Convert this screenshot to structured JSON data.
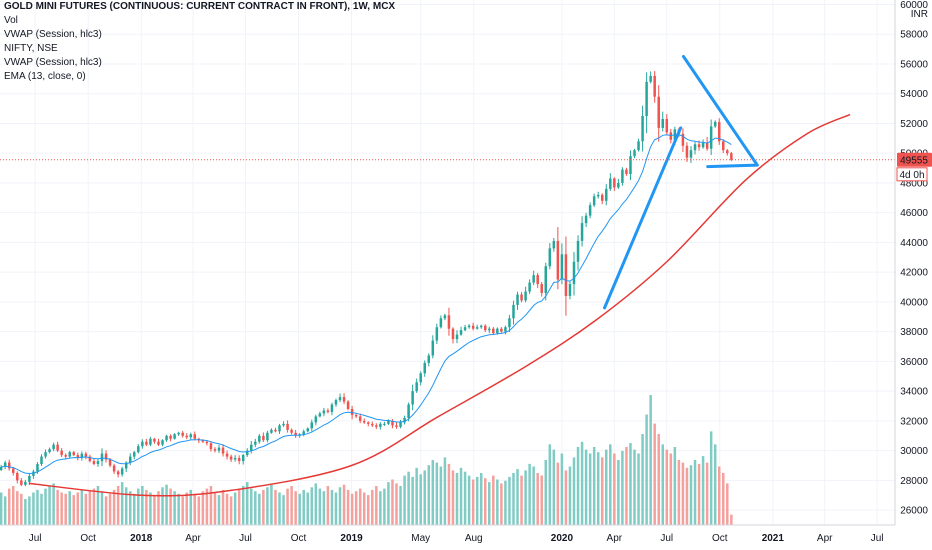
{
  "legend": {
    "title": "GOLD MINI FUTURES (CONTINUOUS: CURRENT CONTRACT IN FRONT), 1W, MCX",
    "items": [
      "Vol",
      "VWAP (Session, hlc3)",
      "NIFTY, NSE",
      "VWAP (Session, hlc3)",
      "EMA (13, close, 0)"
    ]
  },
  "axis": {
    "currency": "INR",
    "price_label": "49555",
    "countdown_label": "4d 0h"
  },
  "colors": {
    "up": "#26a69a",
    "down": "#ef5350",
    "vol_up": "#80cbc4",
    "vol_down": "#f4a09c",
    "ema": "#2196f3",
    "curve": "#e53935",
    "drawing": "#2196f3",
    "price_tag": "#ef5350"
  },
  "chart_data": {
    "type": "candlestick",
    "yaxis": {
      "ticks": [
        "26000",
        "28000",
        "30000",
        "32000",
        "34000",
        "36000",
        "38000",
        "40000",
        "42000",
        "44000",
        "46000",
        "48000",
        "50000",
        "52000",
        "54000",
        "56000",
        "58000",
        "60000"
      ],
      "ylim": [
        25000,
        60300
      ]
    },
    "xaxis": {
      "ticks": [
        {
          "label": "Jul",
          "date": "2017-07-01",
          "bold": false
        },
        {
          "label": "Oct",
          "date": "2017-10-01",
          "bold": false
        },
        {
          "label": "2018",
          "date": "2018-01-01",
          "bold": true
        },
        {
          "label": "Apr",
          "date": "2018-04-01",
          "bold": false
        },
        {
          "label": "Jul",
          "date": "2018-07-01",
          "bold": false
        },
        {
          "label": "Oct",
          "date": "2018-10-01",
          "bold": false
        },
        {
          "label": "2019",
          "date": "2019-01-01",
          "bold": true
        },
        {
          "label": "May",
          "date": "2019-05-01",
          "bold": false
        },
        {
          "label": "Aug",
          "date": "2019-08-01",
          "bold": false
        },
        {
          "label": "2020",
          "date": "2020-01-01",
          "bold": true
        },
        {
          "label": "Apr",
          "date": "2020-04-01",
          "bold": false
        },
        {
          "label": "Jul",
          "date": "2020-07-01",
          "bold": false
        },
        {
          "label": "Oct",
          "date": "2020-10-01",
          "bold": false
        },
        {
          "label": "2021",
          "date": "2021-01-01",
          "bold": true
        },
        {
          "label": "Apr",
          "date": "2021-04-01",
          "bold": false
        },
        {
          "label": "Jul",
          "date": "2021-07-01",
          "bold": false
        }
      ],
      "start": "2017-05-01",
      "end": "2021-08-01"
    },
    "closes": [
      28900,
      29200,
      28800,
      28500,
      28000,
      27700,
      27900,
      28300,
      28600,
      29100,
      29600,
      29900,
      30100,
      30400,
      30000,
      29700,
      29600,
      29900,
      29700,
      29500,
      29800,
      29600,
      29300,
      29100,
      29300,
      29800,
      29400,
      29000,
      28600,
      28400,
      28800,
      29200,
      29600,
      29900,
      30300,
      30600,
      30400,
      30800,
      30600,
      30400,
      30700,
      31000,
      30800,
      31100,
      31200,
      31000,
      30900,
      31100,
      30800,
      30700,
      30600,
      30500,
      30100,
      30000,
      30200,
      29800,
      29600,
      29400,
      29500,
      29300,
      29700,
      30000,
      30400,
      30600,
      31000,
      30700,
      31200,
      31400,
      31300,
      31700,
      31800,
      31400,
      31200,
      31000,
      31100,
      31300,
      31500,
      31900,
      32300,
      32500,
      32700,
      32600,
      33100,
      33400,
      33600,
      33300,
      32800,
      32400,
      32300,
      32000,
      31900,
      31800,
      31700,
      31600,
      31800,
      31800,
      32000,
      31700,
      31600,
      31900,
      32200,
      33100,
      34000,
      34600,
      35200,
      35900,
      36400,
      37400,
      38300,
      38900,
      39100,
      38200,
      37500,
      37800,
      38100,
      38300,
      38400,
      38200,
      38300,
      38400,
      38100,
      38200,
      37900,
      38200,
      38000,
      38300,
      38900,
      39800,
      40500,
      40100,
      40700,
      41300,
      41800,
      41200,
      40600,
      42400,
      43600,
      44100,
      41500,
      43200,
      40400,
      41200,
      42700,
      44100,
      45300,
      45800,
      46500,
      47100,
      47200,
      46800,
      47600,
      48300,
      47700,
      48000,
      48900,
      48600,
      49800,
      50200,
      50800,
      52500,
      54800,
      55200,
      53800,
      51700,
      52300,
      51400,
      50900,
      51600,
      51300,
      50500,
      49700,
      50200,
      50600,
      50400,
      50700,
      50300,
      51800,
      52100,
      50800,
      50200,
      50000,
      49555
    ],
    "volume": [
      0.25,
      0.22,
      0.28,
      0.3,
      0.26,
      0.24,
      0.2,
      0.22,
      0.25,
      0.27,
      0.24,
      0.28,
      0.3,
      0.32,
      0.27,
      0.25,
      0.24,
      0.26,
      0.23,
      0.25,
      0.27,
      0.24,
      0.26,
      0.28,
      0.3,
      0.26,
      0.22,
      0.24,
      0.27,
      0.3,
      0.33,
      0.29,
      0.26,
      0.24,
      0.28,
      0.3,
      0.27,
      0.25,
      0.23,
      0.26,
      0.29,
      0.31,
      0.28,
      0.26,
      0.24,
      0.22,
      0.25,
      0.27,
      0.24,
      0.22,
      0.26,
      0.28,
      0.3,
      0.25,
      0.23,
      0.27,
      0.24,
      0.22,
      0.25,
      0.28,
      0.3,
      0.33,
      0.28,
      0.26,
      0.24,
      0.27,
      0.29,
      0.31,
      0.27,
      0.25,
      0.23,
      0.28,
      0.3,
      0.26,
      0.24,
      0.27,
      0.25,
      0.29,
      0.32,
      0.28,
      0.26,
      0.3,
      0.27,
      0.25,
      0.29,
      0.31,
      0.27,
      0.24,
      0.26,
      0.28,
      0.25,
      0.23,
      0.27,
      0.3,
      0.26,
      0.28,
      0.33,
      0.35,
      0.32,
      0.3,
      0.38,
      0.41,
      0.37,
      0.44,
      0.39,
      0.42,
      0.46,
      0.5,
      0.48,
      0.45,
      0.52,
      0.47,
      0.42,
      0.4,
      0.44,
      0.41,
      0.38,
      0.35,
      0.37,
      0.4,
      0.36,
      0.33,
      0.38,
      0.35,
      0.32,
      0.34,
      0.37,
      0.4,
      0.43,
      0.38,
      0.42,
      0.47,
      0.45,
      0.4,
      0.38,
      0.5,
      0.62,
      0.58,
      0.48,
      0.55,
      0.42,
      0.45,
      0.52,
      0.6,
      0.64,
      0.58,
      0.55,
      0.6,
      0.56,
      0.52,
      0.58,
      0.62,
      0.55,
      0.5,
      0.57,
      0.6,
      0.63,
      0.58,
      0.55,
      0.7,
      0.85,
      1.0,
      0.78,
      0.7,
      0.62,
      0.58,
      0.55,
      0.6,
      0.5,
      0.48,
      0.44,
      0.46,
      0.5,
      0.47,
      0.53,
      0.48,
      0.72,
      0.62,
      0.45,
      0.4,
      0.32,
      0.08
    ],
    "ema_note": "",
    "curve_points": [
      {
        "date": "2017-06-20",
        "y": 27800
      },
      {
        "date": "2018-01-01",
        "y": 27000
      },
      {
        "date": "2018-06-01",
        "y": 27300
      },
      {
        "date": "2019-01-01",
        "y": 29000
      },
      {
        "date": "2019-06-01",
        "y": 32300
      },
      {
        "date": "2019-11-01",
        "y": 35700
      },
      {
        "date": "2020-03-01",
        "y": 38800
      },
      {
        "date": "2020-07-01",
        "y": 42700
      },
      {
        "date": "2020-11-15",
        "y": 48200
      },
      {
        "date": "2021-03-01",
        "y": 51300
      },
      {
        "date": "2021-05-15",
        "y": 52600
      }
    ],
    "drawings": [
      {
        "name": "trend-line",
        "points": [
          {
            "date": "2020-03-15",
            "y": 39600
          },
          {
            "date": "2020-07-25",
            "y": 51700
          }
        ]
      },
      {
        "name": "triangle-upper",
        "points": [
          {
            "date": "2020-07-30",
            "y": 56500
          },
          {
            "date": "2020-12-05",
            "y": 49200
          }
        ]
      },
      {
        "name": "triangle-base",
        "points": [
          {
            "date": "2020-09-10",
            "y": 49100
          },
          {
            "date": "2020-12-05",
            "y": 49200
          }
        ]
      }
    ]
  }
}
